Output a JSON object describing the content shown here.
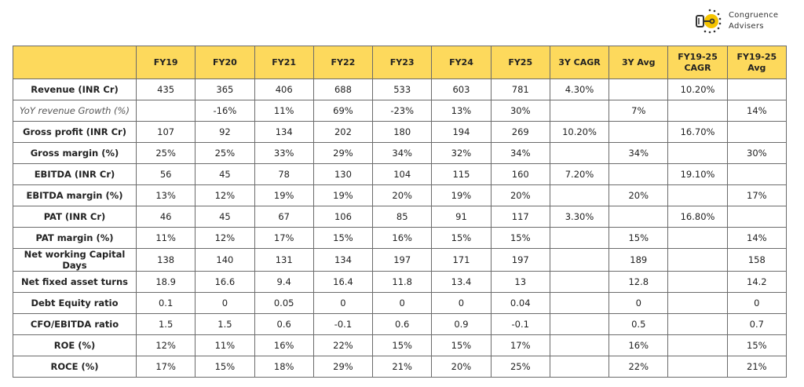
{
  "logo": {
    "name_line1": "Congruence",
    "name_line2": "Advisers",
    "icon": "key-sun-icon",
    "accent": "#f5c400"
  },
  "colors": {
    "header_bg": "#fdd95c",
    "border": "#6b6b6b"
  },
  "table": {
    "columns": [
      "",
      "FY19",
      "FY20",
      "FY21",
      "FY22",
      "FY23",
      "FY24",
      "FY25",
      "3Y CAGR",
      "3Y Avg",
      "FY19-25 CAGR",
      "FY19-25 Avg"
    ],
    "rows": [
      {
        "label": "Revenue (INR Cr)",
        "italic": false,
        "cells": [
          "435",
          "365",
          "406",
          "688",
          "533",
          "603",
          "781",
          "4.30%",
          "",
          "10.20%",
          ""
        ]
      },
      {
        "label": "YoY revenue Growth (%)",
        "italic": true,
        "cells": [
          "",
          "-16%",
          "11%",
          "69%",
          "-23%",
          "13%",
          "30%",
          "",
          "7%",
          "",
          "14%"
        ]
      },
      {
        "label": "Gross profit (INR Cr)",
        "italic": false,
        "cells": [
          "107",
          "92",
          "134",
          "202",
          "180",
          "194",
          "269",
          "10.20%",
          "",
          "16.70%",
          ""
        ]
      },
      {
        "label": "Gross margin (%)",
        "italic": false,
        "cells": [
          "25%",
          "25%",
          "33%",
          "29%",
          "34%",
          "32%",
          "34%",
          "",
          "34%",
          "",
          "30%"
        ]
      },
      {
        "label": "EBITDA (INR Cr)",
        "italic": false,
        "cells": [
          "56",
          "45",
          "78",
          "130",
          "104",
          "115",
          "160",
          "7.20%",
          "",
          "19.10%",
          ""
        ]
      },
      {
        "label": "EBITDA margin (%)",
        "italic": false,
        "cells": [
          "13%",
          "12%",
          "19%",
          "19%",
          "20%",
          "19%",
          "20%",
          "",
          "20%",
          "",
          "17%"
        ]
      },
      {
        "label": "PAT (INR Cr)",
        "italic": false,
        "cells": [
          "46",
          "45",
          "67",
          "106",
          "85",
          "91",
          "117",
          "3.30%",
          "",
          "16.80%",
          ""
        ]
      },
      {
        "label": "PAT margin (%)",
        "italic": false,
        "cells": [
          "11%",
          "12%",
          "17%",
          "15%",
          "16%",
          "15%",
          "15%",
          "",
          "15%",
          "",
          "14%"
        ]
      },
      {
        "label": "Net working Capital Days",
        "italic": false,
        "cells": [
          "138",
          "140",
          "131",
          "134",
          "197",
          "171",
          "197",
          "",
          "189",
          "",
          "158"
        ]
      },
      {
        "label": "Net fixed asset turns",
        "italic": false,
        "cells": [
          "18.9",
          "16.6",
          "9.4",
          "16.4",
          "11.8",
          "13.4",
          "13",
          "",
          "12.8",
          "",
          "14.2"
        ]
      },
      {
        "label": "Debt Equity ratio",
        "italic": false,
        "cells": [
          "0.1",
          "0",
          "0.05",
          "0",
          "0",
          "0",
          "0.04",
          "",
          "0",
          "",
          "0"
        ]
      },
      {
        "label": "CFO/EBITDA ratio",
        "italic": false,
        "cells": [
          "1.5",
          "1.5",
          "0.6",
          "-0.1",
          "0.6",
          "0.9",
          "-0.1",
          "",
          "0.5",
          "",
          "0.7"
        ]
      },
      {
        "label": "ROE (%)",
        "italic": false,
        "cells": [
          "12%",
          "11%",
          "16%",
          "22%",
          "15%",
          "15%",
          "17%",
          "",
          "16%",
          "",
          "15%"
        ]
      },
      {
        "label": "ROCE (%)",
        "italic": false,
        "cells": [
          "17%",
          "15%",
          "18%",
          "29%",
          "21%",
          "20%",
          "25%",
          "",
          "22%",
          "",
          "21%"
        ]
      }
    ]
  }
}
